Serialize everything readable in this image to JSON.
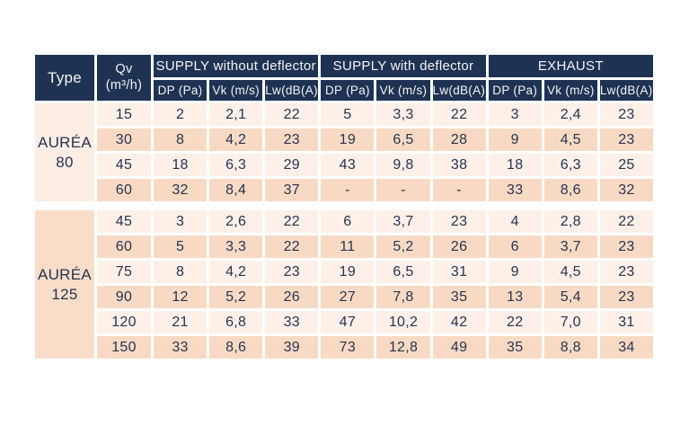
{
  "colors": {
    "header_bg": "#1e3354",
    "header_text": "#f5f3f0",
    "text_dark": "#263450",
    "row_light": "#fdf0e9",
    "row_peach": "#f8dac4",
    "type_light": "#fcede5",
    "type_peach": "#f9ddc9"
  },
  "chart_data": {
    "type": "table",
    "header": {
      "type_label": "Type",
      "qv_line1": "Qv",
      "qv_line2": "(m³/h)",
      "groups": [
        "SUPPLY without deflector",
        "SUPPLY with deflector",
        "EXHAUST"
      ],
      "subcolumns": [
        "DP (Pa)",
        "Vk (m/s)",
        "Lw(dB(A))"
      ]
    },
    "sections": [
      {
        "type_line1": "AURÉA",
        "type_line2": "80",
        "rows": [
          {
            "qv": "15",
            "values": [
              "2",
              "2,1",
              "22",
              "5",
              "3,3",
              "22",
              "3",
              "2,4",
              "23"
            ]
          },
          {
            "qv": "30",
            "values": [
              "8",
              "4,2",
              "23",
              "19",
              "6,5",
              "28",
              "9",
              "4,5",
              "23"
            ]
          },
          {
            "qv": "45",
            "values": [
              "18",
              "6,3",
              "29",
              "43",
              "9,8",
              "38",
              "18",
              "6,3",
              "25"
            ]
          },
          {
            "qv": "60",
            "values": [
              "32",
              "8,4",
              "37",
              "-",
              "-",
              "-",
              "33",
              "8,6",
              "32"
            ]
          }
        ]
      },
      {
        "type_line1": "AURÉA",
        "type_line2": "125",
        "rows": [
          {
            "qv": "45",
            "values": [
              "3",
              "2,6",
              "22",
              "6",
              "3,7",
              "23",
              "4",
              "2,8",
              "22"
            ]
          },
          {
            "qv": "60",
            "values": [
              "5",
              "3,3",
              "22",
              "11",
              "5,2",
              "26",
              "6",
              "3,7",
              "23"
            ]
          },
          {
            "qv": "75",
            "values": [
              "8",
              "4,2",
              "23",
              "19",
              "6,5",
              "31",
              "9",
              "4,5",
              "23"
            ]
          },
          {
            "qv": "90",
            "values": [
              "12",
              "5,2",
              "26",
              "27",
              "7,8",
              "35",
              "13",
              "5,4",
              "23"
            ]
          },
          {
            "qv": "120",
            "values": [
              "21",
              "6,8",
              "33",
              "47",
              "10,2",
              "42",
              "22",
              "7,0",
              "31"
            ]
          },
          {
            "qv": "150",
            "values": [
              "33",
              "8,6",
              "39",
              "73",
              "12,8",
              "49",
              "35",
              "8,8",
              "34"
            ]
          }
        ]
      }
    ]
  }
}
